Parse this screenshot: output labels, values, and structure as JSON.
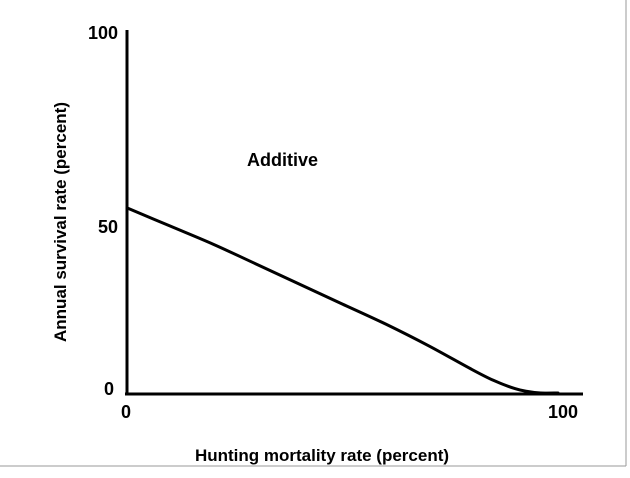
{
  "chart_data": {
    "type": "line",
    "title": "",
    "xlabel": "Hunting mortality rate (percent)",
    "ylabel": "Annual survival rate (percent)",
    "xlim": [
      0,
      100
    ],
    "ylim": [
      0,
      100
    ],
    "x_ticks": [
      "0",
      "100"
    ],
    "y_ticks": [
      "0",
      "50",
      "100"
    ],
    "grid": false,
    "annotations": [
      "Additive"
    ],
    "series": [
      {
        "x": [
          0,
          10,
          20,
          30,
          40,
          50,
          60,
          70,
          80,
          85,
          90,
          93,
          96,
          100
        ],
        "y": [
          51,
          46,
          41,
          35.5,
          30,
          24.5,
          19,
          13,
          6.5,
          3.5,
          1.2,
          0.4,
          0,
          0
        ]
      }
    ],
    "colors": {
      "line": "#000000",
      "axes": "#000000",
      "background": "#ffffff"
    }
  }
}
